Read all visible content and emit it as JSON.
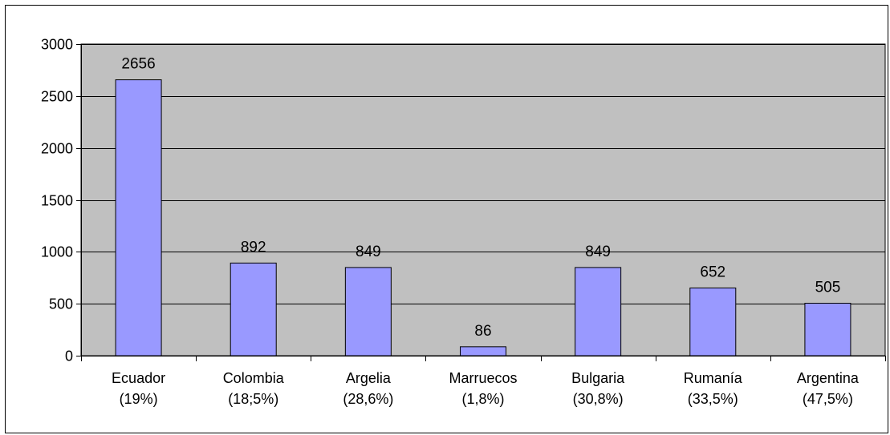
{
  "chart_data": {
    "type": "bar",
    "title": "",
    "xlabel": "",
    "ylabel": "",
    "categories": [
      [
        "Ecuador",
        "(19%)"
      ],
      [
        "Colombia",
        "(18;5%)"
      ],
      [
        "Argelia",
        "(28,6%)"
      ],
      [
        "Marruecos",
        "(1,8%)"
      ],
      [
        "Bulgaria",
        "(30,8%)"
      ],
      [
        "Rumanía",
        "(33,5%)"
      ],
      [
        "Argentina",
        "(47,5%)"
      ]
    ],
    "values": [
      2656,
      892,
      849,
      86,
      849,
      652,
      505
    ],
    "data_labels": [
      "2656",
      "892",
      "849",
      "86",
      "849",
      "652",
      "505"
    ],
    "yticks": [
      0,
      500,
      1000,
      1500,
      2000,
      2500,
      3000
    ],
    "ytick_labels": [
      "0",
      "500",
      "1000",
      "1500",
      "2000",
      "2500",
      "3000"
    ],
    "ylim": [
      0,
      3000
    ],
    "grid": true,
    "legend": "none",
    "colors": {
      "bar_fill": "#9999FF",
      "bar_stroke": "#000000",
      "plot_background": "#C0C0C0",
      "gridline": "#000000",
      "frame": "#000000"
    }
  }
}
